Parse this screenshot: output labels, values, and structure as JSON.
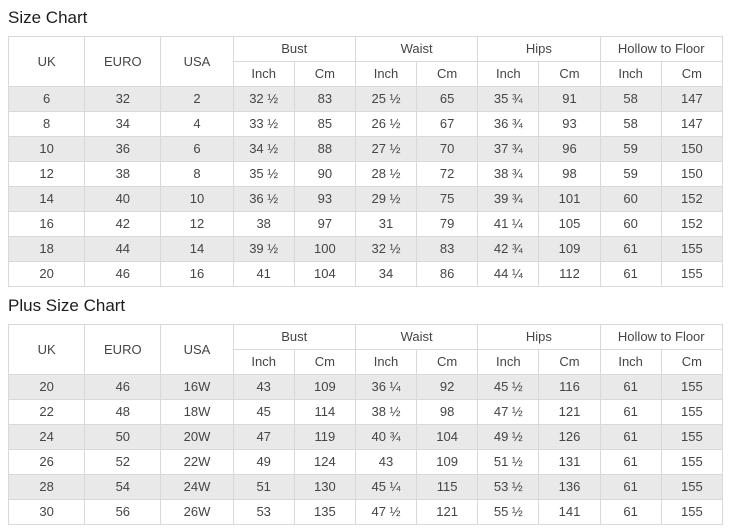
{
  "colors": {
    "row_alt_background": "#e9e9e9",
    "table_border": "#d9d9d9",
    "table_text": "#454545",
    "title_text": "#1c1c1c",
    "page_background": "#ffffff"
  },
  "headers": {
    "uk": "UK",
    "euro": "EURO",
    "usa": "USA",
    "bust": "Bust",
    "waist": "Waist",
    "hips": "Hips",
    "hollow_to_floor": "Hollow to Floor",
    "inch": "Inch",
    "cm": "Cm"
  },
  "size_chart": {
    "title": "Size Chart",
    "rows": [
      [
        "6",
        "32",
        "2",
        "32 ½",
        "83",
        "25 ½",
        "65",
        "35 ¾",
        "91",
        "58",
        "147"
      ],
      [
        "8",
        "34",
        "4",
        "33 ½",
        "85",
        "26 ½",
        "67",
        "36 ¾",
        "93",
        "58",
        "147"
      ],
      [
        "10",
        "36",
        "6",
        "34 ½",
        "88",
        "27 ½",
        "70",
        "37 ¾",
        "96",
        "59",
        "150"
      ],
      [
        "12",
        "38",
        "8",
        "35 ½",
        "90",
        "28 ½",
        "72",
        "38 ¾",
        "98",
        "59",
        "150"
      ],
      [
        "14",
        "40",
        "10",
        "36 ½",
        "93",
        "29 ½",
        "75",
        "39 ¾",
        "101",
        "60",
        "152"
      ],
      [
        "16",
        "42",
        "12",
        "38",
        "97",
        "31",
        "79",
        "41 ¼",
        "105",
        "60",
        "152"
      ],
      [
        "18",
        "44",
        "14",
        "39 ½",
        "100",
        "32 ½",
        "83",
        "42 ¾",
        "109",
        "61",
        "155"
      ],
      [
        "20",
        "46",
        "16",
        "41",
        "104",
        "34",
        "86",
        "44 ¼",
        "112",
        "61",
        "155"
      ]
    ]
  },
  "plus_size_chart": {
    "title": "Plus Size Chart",
    "rows": [
      [
        "20",
        "46",
        "16W",
        "43",
        "109",
        "36 ¼",
        "92",
        "45 ½",
        "116",
        "61",
        "155"
      ],
      [
        "22",
        "48",
        "18W",
        "45",
        "114",
        "38 ½",
        "98",
        "47 ½",
        "121",
        "61",
        "155"
      ],
      [
        "24",
        "50",
        "20W",
        "47",
        "119",
        "40 ¾",
        "104",
        "49 ½",
        "126",
        "61",
        "155"
      ],
      [
        "26",
        "52",
        "22W",
        "49",
        "124",
        "43",
        "109",
        "51 ½",
        "131",
        "61",
        "155"
      ],
      [
        "28",
        "54",
        "24W",
        "51",
        "130",
        "45 ¼",
        "115",
        "53 ½",
        "136",
        "61",
        "155"
      ],
      [
        "30",
        "56",
        "26W",
        "53",
        "135",
        "47 ½",
        "121",
        "55 ½",
        "141",
        "61",
        "155"
      ]
    ]
  },
  "chart_data": [
    {
      "type": "table",
      "title": "Size Chart",
      "columns": [
        "UK",
        "EURO",
        "USA",
        "Bust Inch",
        "Bust Cm",
        "Waist Inch",
        "Waist Cm",
        "Hips Inch",
        "Hips Cm",
        "Hollow to Floor Inch",
        "Hollow to Floor Cm"
      ],
      "rows": [
        [
          "6",
          "32",
          "2",
          "32 ½",
          "83",
          "25 ½",
          "65",
          "35 ¾",
          "91",
          "58",
          "147"
        ],
        [
          "8",
          "34",
          "4",
          "33 ½",
          "85",
          "26 ½",
          "67",
          "36 ¾",
          "93",
          "58",
          "147"
        ],
        [
          "10",
          "36",
          "6",
          "34 ½",
          "88",
          "27 ½",
          "70",
          "37 ¾",
          "96",
          "59",
          "150"
        ],
        [
          "12",
          "38",
          "8",
          "35 ½",
          "90",
          "28 ½",
          "72",
          "38 ¾",
          "98",
          "59",
          "150"
        ],
        [
          "14",
          "40",
          "10",
          "36 ½",
          "93",
          "29 ½",
          "75",
          "39 ¾",
          "101",
          "60",
          "152"
        ],
        [
          "16",
          "42",
          "12",
          "38",
          "97",
          "31",
          "79",
          "41 ¼",
          "105",
          "60",
          "152"
        ],
        [
          "18",
          "44",
          "14",
          "39 ½",
          "100",
          "32 ½",
          "83",
          "42 ¾",
          "109",
          "61",
          "155"
        ],
        [
          "20",
          "46",
          "16",
          "41",
          "104",
          "34",
          "86",
          "44 ¼",
          "112",
          "61",
          "155"
        ]
      ]
    },
    {
      "type": "table",
      "title": "Plus Size Chart",
      "columns": [
        "UK",
        "EURO",
        "USA",
        "Bust Inch",
        "Bust Cm",
        "Waist Inch",
        "Waist Cm",
        "Hips Inch",
        "Hips Cm",
        "Hollow to Floor Inch",
        "Hollow to Floor Cm"
      ],
      "rows": [
        [
          "20",
          "46",
          "16W",
          "43",
          "109",
          "36 ¼",
          "92",
          "45 ½",
          "116",
          "61",
          "155"
        ],
        [
          "22",
          "48",
          "18W",
          "45",
          "114",
          "38 ½",
          "98",
          "47 ½",
          "121",
          "61",
          "155"
        ],
        [
          "24",
          "50",
          "20W",
          "47",
          "119",
          "40 ¾",
          "104",
          "49 ½",
          "126",
          "61",
          "155"
        ],
        [
          "26",
          "52",
          "22W",
          "49",
          "124",
          "43",
          "109",
          "51 ½",
          "131",
          "61",
          "155"
        ],
        [
          "28",
          "54",
          "24W",
          "51",
          "130",
          "45 ¼",
          "115",
          "53 ½",
          "136",
          "61",
          "155"
        ],
        [
          "30",
          "56",
          "26W",
          "53",
          "135",
          "47 ½",
          "121",
          "55 ½",
          "141",
          "61",
          "155"
        ]
      ]
    }
  ]
}
